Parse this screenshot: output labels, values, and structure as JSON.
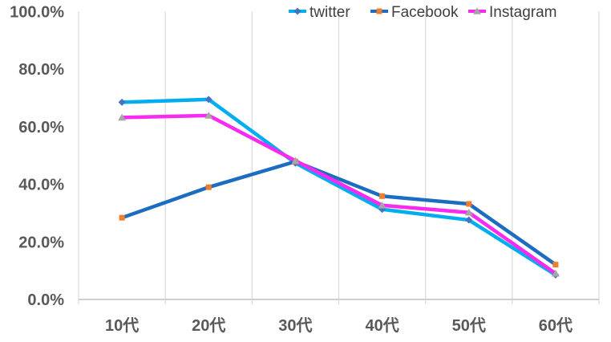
{
  "chart_data": {
    "type": "line",
    "title": "",
    "categories": [
      "10代",
      "20代",
      "30代",
      "40代",
      "50代",
      "60代"
    ],
    "series": [
      {
        "name": "twitter",
        "line_color": "#00AEEF",
        "marker": "diamond",
        "marker_color": "#4472C4",
        "values": [
          68.5,
          69.5,
          47.4,
          31.3,
          27.6,
          8.5
        ]
      },
      {
        "name": "Facebook",
        "line_color": "#1C6CBF",
        "marker": "square",
        "marker_color": "#ED7D31",
        "values": [
          28.4,
          39.0,
          47.9,
          35.9,
          33.2,
          12.1
        ]
      },
      {
        "name": "Instagram",
        "line_color": "#F72BEF",
        "marker": "triangle",
        "marker_color": "#A6A6A6",
        "values": [
          63.2,
          63.9,
          48.2,
          32.7,
          30.2,
          9.0
        ]
      }
    ],
    "y_axis": {
      "min": 0,
      "max": 100,
      "tick_values": [
        0,
        20,
        40,
        60,
        80,
        100
      ],
      "ticks": [
        "0.0%",
        "20.0%",
        "40.0%",
        "60.0%",
        "80.0%",
        "100.0%"
      ]
    },
    "xlabel": "",
    "ylabel": "",
    "legend_position": "top",
    "grid": {
      "vertical": true,
      "horizontal": false
    },
    "colors": {
      "background": "#FFFFFF",
      "gridline": "#D9D9D9",
      "axis_line": "#BFBFBF",
      "axis_text": "#595959",
      "legend_text": "#3F3F3F"
    }
  }
}
